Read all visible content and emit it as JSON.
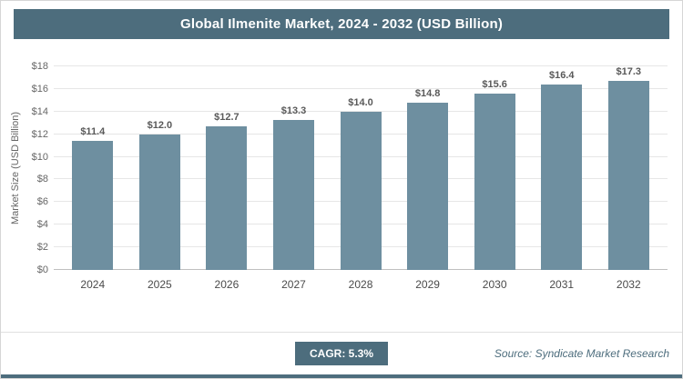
{
  "title": "Global Ilmenite Market, 2024 - 2032 (USD Billion)",
  "footer": {
    "cagr_label": "CAGR: 5.3%",
    "source": "Source: Syndicate Market Research"
  },
  "chart_data": {
    "type": "bar",
    "title": "Global Ilmenite Market, 2024 - 2032 (USD Billion)",
    "categories": [
      "2024",
      "2025",
      "2026",
      "2027",
      "2028",
      "2029",
      "2030",
      "2031",
      "2032"
    ],
    "values": [
      11.4,
      12.0,
      12.7,
      13.3,
      14.0,
      14.8,
      15.6,
      16.4,
      17.3
    ],
    "value_labels": [
      "$11.4",
      "$12.0",
      "$12.7",
      "$13.3",
      "$14.0",
      "$14.8",
      "$15.6",
      "$16.4",
      "$17.3"
    ],
    "xlabel": "",
    "ylabel": "Market Size (USD Billion)",
    "ylim": [
      0,
      18
    ],
    "yticks": [
      "$0",
      "$2",
      "$4",
      "$6",
      "$8",
      "$10",
      "$12",
      "$14",
      "$16",
      "$18"
    ],
    "grid": "horizontal",
    "legend": "none",
    "bar_color": "#6e8fa0",
    "accent_color": "#4d6d7d"
  }
}
